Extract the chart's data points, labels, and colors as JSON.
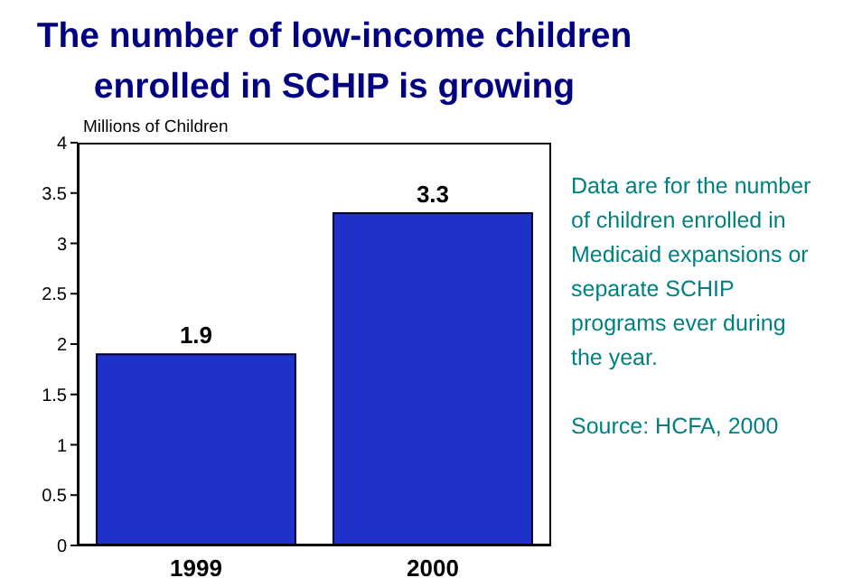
{
  "chart_data": {
    "type": "bar",
    "title": "The number of low-income children enrolled in SCHIP is growing",
    "ylabel": "Millions of Children",
    "categories": [
      "1999",
      "2000"
    ],
    "values": [
      1.9,
      3.3
    ],
    "color": "#1f32c8",
    "ylim": [
      0,
      4
    ],
    "yticks": [
      0,
      0.5,
      1,
      1.5,
      2,
      2.5,
      3,
      3.5,
      4
    ],
    "grid": false,
    "legend": false,
    "data_labels": true,
    "annotations": [
      "Data are for the number of children enrolled in Medicaid expansions or separate SCHIP programs ever during the year.",
      "Source: HCFA, 2000"
    ]
  }
}
